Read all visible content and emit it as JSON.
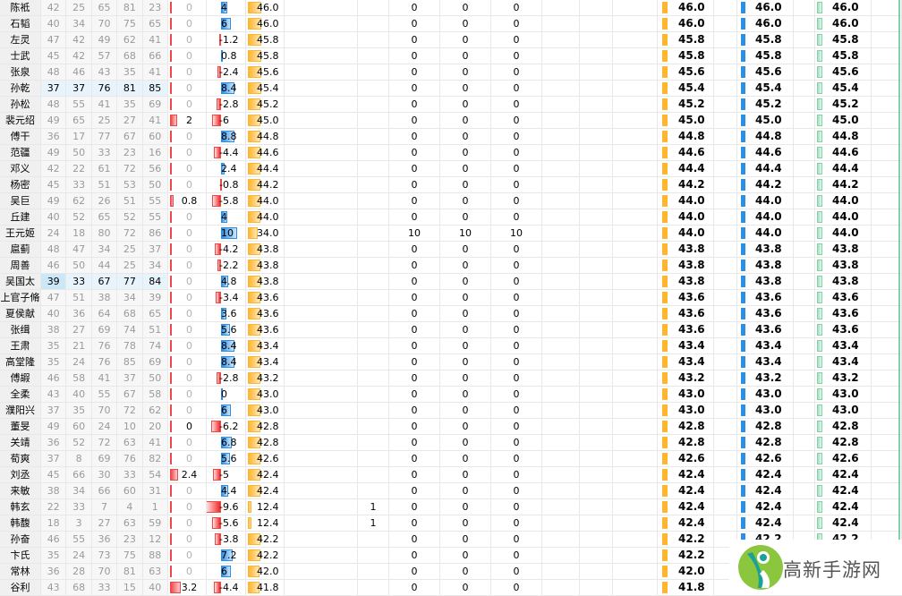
{
  "colors": {
    "red_bar": "#f04848",
    "blue_bar": "#2b8fe8",
    "orange_bar": "#ffb52e",
    "green_bar": "#a8e0c0",
    "highlight": "#e8f4fc"
  },
  "rows": [
    {
      "name": "陈袛",
      "stats": [
        42,
        25,
        65,
        81,
        23
      ],
      "c6": "0",
      "delta": "4",
      "score": "46.0",
      "ones": "",
      "a": "0",
      "b": "0",
      "c": "0",
      "final": "46.0"
    },
    {
      "name": "石韬",
      "stats": [
        40,
        34,
        70,
        75,
        65
      ],
      "c6": "0",
      "delta": "6",
      "score": "46.0",
      "ones": "",
      "a": "0",
      "b": "0",
      "c": "0",
      "final": "46.0"
    },
    {
      "name": "左灵",
      "stats": [
        47,
        42,
        49,
        62,
        41
      ],
      "c6": "0",
      "delta": "-1.2",
      "score": "45.8",
      "ones": "",
      "a": "0",
      "b": "0",
      "c": "0",
      "final": "45.8"
    },
    {
      "name": "士武",
      "stats": [
        45,
        42,
        57,
        68,
        66
      ],
      "c6": "0",
      "delta": "0.8",
      "score": "45.8",
      "ones": "",
      "a": "0",
      "b": "0",
      "c": "0",
      "final": "45.8"
    },
    {
      "name": "张泉",
      "stats": [
        48,
        46,
        43,
        35,
        41
      ],
      "c6": "0",
      "delta": "-2.4",
      "score": "45.6",
      "ones": "",
      "a": "0",
      "b": "0",
      "c": "0",
      "final": "45.6"
    },
    {
      "name": "孙乾",
      "stats": [
        37,
        37,
        76,
        81,
        85
      ],
      "hl": true,
      "c6": "0",
      "delta": "8.4",
      "score": "45.4",
      "ones": "",
      "a": "0",
      "b": "0",
      "c": "0",
      "final": "45.4"
    },
    {
      "name": "孙松",
      "stats": [
        48,
        55,
        41,
        35,
        69
      ],
      "c6": "0",
      "delta": "-2.8",
      "score": "45.2",
      "ones": "",
      "a": "0",
      "b": "0",
      "c": "0",
      "final": "45.2"
    },
    {
      "name": "裴元绍",
      "stats": [
        49,
        65,
        25,
        27,
        41
      ],
      "c6": "2",
      "delta": "-6",
      "score": "45.0",
      "ones": "",
      "a": "0",
      "b": "0",
      "c": "0",
      "final": "45.0"
    },
    {
      "name": "傅干",
      "stats": [
        36,
        17,
        77,
        67,
        60
      ],
      "c6": "0",
      "delta": "8.8",
      "score": "44.8",
      "ones": "",
      "a": "0",
      "b": "0",
      "c": "0",
      "final": "44.8"
    },
    {
      "name": "范疆",
      "stats": [
        49,
        50,
        33,
        23,
        16
      ],
      "c6": "0",
      "delta": "-4.4",
      "score": "44.6",
      "ones": "",
      "a": "0",
      "b": "0",
      "c": "0",
      "final": "44.6"
    },
    {
      "name": "邓义",
      "stats": [
        42,
        22,
        61,
        72,
        56
      ],
      "c6": "0",
      "delta": "2.4",
      "score": "44.4",
      "ones": "",
      "a": "0",
      "b": "0",
      "c": "0",
      "final": "44.4"
    },
    {
      "name": "杨密",
      "stats": [
        45,
        33,
        51,
        53,
        50
      ],
      "c6": "0",
      "delta": "-0.8",
      "score": "44.2",
      "ones": "",
      "a": "0",
      "b": "0",
      "c": "0",
      "final": "44.2"
    },
    {
      "name": "吴巨",
      "stats": [
        49,
        62,
        26,
        51,
        55
      ],
      "c6": "0.8",
      "delta": "-5.8",
      "score": "44.0",
      "ones": "",
      "a": "0",
      "b": "0",
      "c": "0",
      "final": "44.0"
    },
    {
      "name": "丘建",
      "stats": [
        40,
        52,
        65,
        52,
        55
      ],
      "c6": "0",
      "delta": "4",
      "score": "44.0",
      "ones": "",
      "a": "0",
      "b": "0",
      "c": "0",
      "final": "44.0"
    },
    {
      "name": "王元姬",
      "stats": [
        24,
        18,
        80,
        72,
        86
      ],
      "c6": "0",
      "delta": "10",
      "score": "34.0",
      "ones": "",
      "a": "10",
      "b": "10",
      "c": "10",
      "final": "44.0"
    },
    {
      "name": "扈蓟",
      "stats": [
        48,
        47,
        34,
        25,
        37
      ],
      "c6": "0",
      "delta": "-4.2",
      "score": "43.8",
      "ones": "",
      "a": "0",
      "b": "0",
      "c": "0",
      "final": "43.8"
    },
    {
      "name": "周善",
      "stats": [
        46,
        50,
        44,
        25,
        34
      ],
      "c6": "0",
      "delta": "-2.2",
      "score": "43.8",
      "ones": "",
      "a": "0",
      "b": "0",
      "c": "0",
      "final": "43.8"
    },
    {
      "name": "吴国太",
      "stats": [
        39,
        33,
        67,
        77,
        84
      ],
      "hl": true,
      "c6": "0",
      "delta": "4.8",
      "score": "43.8",
      "ones": "",
      "a": "0",
      "b": "0",
      "c": "0",
      "final": "43.8"
    },
    {
      "name": "上官子脩",
      "stats": [
        47,
        51,
        38,
        34,
        39
      ],
      "c6": "0",
      "delta": "-3.4",
      "score": "43.6",
      "ones": "",
      "a": "0",
      "b": "0",
      "c": "0",
      "final": "43.6"
    },
    {
      "name": "夏侯献",
      "stats": [
        40,
        36,
        64,
        68,
        65
      ],
      "c6": "0",
      "delta": "3.6",
      "score": "43.6",
      "ones": "",
      "a": "0",
      "b": "0",
      "c": "0",
      "final": "43.6"
    },
    {
      "name": "张缉",
      "stats": [
        38,
        27,
        69,
        74,
        51
      ],
      "c6": "0",
      "delta": "5.6",
      "score": "43.6",
      "ones": "",
      "a": "0",
      "b": "0",
      "c": "0",
      "final": "43.6"
    },
    {
      "name": "王肃",
      "stats": [
        35,
        21,
        76,
        78,
        74
      ],
      "c6": "0",
      "delta": "8.4",
      "score": "43.4",
      "ones": "",
      "a": "0",
      "b": "0",
      "c": "0",
      "final": "43.4"
    },
    {
      "name": "高堂隆",
      "stats": [
        35,
        24,
        76,
        85,
        69
      ],
      "c6": "0",
      "delta": "8.4",
      "score": "43.4",
      "ones": "",
      "a": "0",
      "b": "0",
      "c": "0",
      "final": "43.4"
    },
    {
      "name": "傅嘏",
      "stats": [
        46,
        58,
        41,
        37,
        50
      ],
      "c6": "0",
      "delta": "-2.8",
      "score": "43.2",
      "ones": "",
      "a": "0",
      "b": "0",
      "c": "0",
      "final": "43.2"
    },
    {
      "name": "全柔",
      "stats": [
        43,
        40,
        55,
        67,
        58
      ],
      "c6": "0",
      "delta": "0",
      "score": "43.0",
      "ones": "",
      "a": "0",
      "b": "0",
      "c": "0",
      "final": "43.0"
    },
    {
      "name": "濮阳兴",
      "stats": [
        37,
        35,
        70,
        72,
        62
      ],
      "c6": "0",
      "delta": "6",
      "score": "43.0",
      "ones": "",
      "a": "0",
      "b": "0",
      "c": "0",
      "final": "43.0"
    },
    {
      "name": "董旻",
      "stats": [
        49,
        60,
        24,
        10,
        20
      ],
      "c6": "0",
      "c6dark": true,
      "delta": "-6.2",
      "score": "42.8",
      "ones": "",
      "a": "0",
      "b": "0",
      "c": "0",
      "final": "42.8"
    },
    {
      "name": "关靖",
      "stats": [
        36,
        52,
        72,
        63,
        41
      ],
      "c6": "0",
      "delta": "6.8",
      "score": "42.8",
      "ones": "",
      "a": "0",
      "b": "0",
      "c": "0",
      "final": "42.8"
    },
    {
      "name": "荀爽",
      "stats": [
        37,
        8,
        69,
        76,
        82
      ],
      "c6": "0",
      "delta": "5.6",
      "score": "42.6",
      "ones": "",
      "a": "0",
      "b": "0",
      "c": "0",
      "final": "42.6"
    },
    {
      "name": "刘丞",
      "stats": [
        45,
        66,
        30,
        33,
        54
      ],
      "c6": "2.4",
      "delta": "-5",
      "score": "42.4",
      "ones": "",
      "a": "0",
      "b": "0",
      "c": "0",
      "final": "42.4"
    },
    {
      "name": "来敏",
      "stats": [
        38,
        34,
        66,
        60,
        31
      ],
      "c6": "0",
      "delta": "4.4",
      "score": "42.4",
      "ones": "",
      "a": "0",
      "b": "0",
      "c": "0",
      "final": "42.4"
    },
    {
      "name": "韩玄",
      "stats": [
        22,
        33,
        7,
        4,
        1
      ],
      "c6": "0",
      "delta": "-9.6",
      "score": "12.4",
      "ones": "1",
      "a": "0",
      "b": "0",
      "c": "0",
      "final": "42.4"
    },
    {
      "name": "韩馥",
      "stats": [
        18,
        3,
        27,
        63,
        59
      ],
      "c6": "0",
      "delta": "-5.6",
      "score": "12.4",
      "ones": "1",
      "a": "0",
      "b": "0",
      "c": "0",
      "final": "42.4"
    },
    {
      "name": "孙奋",
      "stats": [
        46,
        55,
        36,
        23,
        12
      ],
      "c6": "0",
      "delta": "-3.8",
      "score": "42.2",
      "ones": "",
      "a": "0",
      "b": "0",
      "c": "0",
      "final": "42.2"
    },
    {
      "name": "卞氏",
      "stats": [
        35,
        24,
        73,
        75,
        88
      ],
      "c6": "0",
      "delta": "7.2",
      "score": "42.2",
      "ones": "",
      "a": "0",
      "b": "0",
      "c": "0",
      "final": "42.2",
      "hidden_right": true
    },
    {
      "name": "常林",
      "stats": [
        36,
        28,
        70,
        81,
        63
      ],
      "c6": "0",
      "delta": "6",
      "score": "42.0",
      "ones": "",
      "a": "0",
      "b": "0",
      "c": "0",
      "final": "42.0",
      "hidden_right": true
    },
    {
      "name": "谷利",
      "stats": [
        43,
        68,
        33,
        15,
        40
      ],
      "c6": "3.2",
      "delta": "-4.4",
      "score": "41.8",
      "ones": "",
      "a": "0",
      "b": "0",
      "c": "0",
      "final": "41.8",
      "hidden_right": true
    }
  ],
  "watermark": {
    "text": "高新手游网"
  }
}
